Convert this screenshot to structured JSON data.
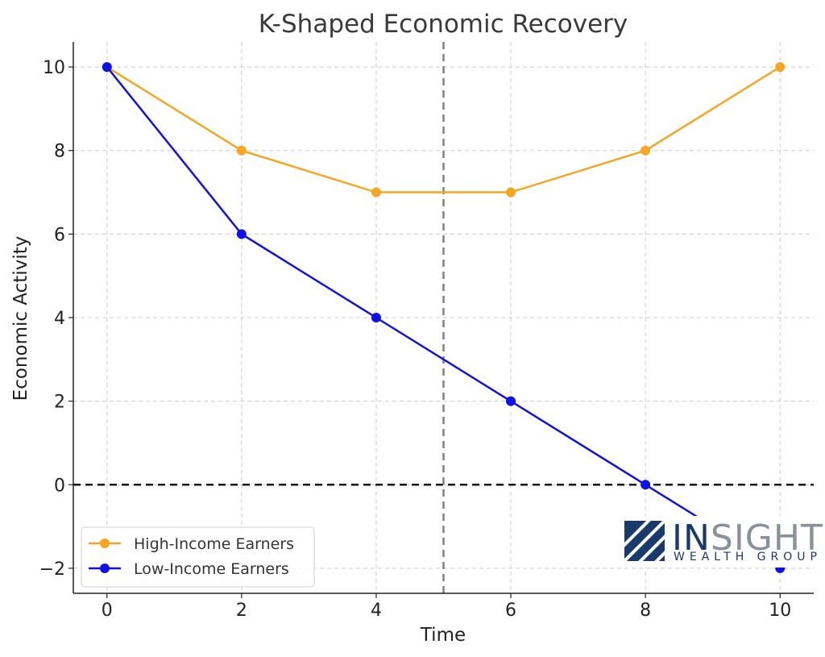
{
  "chart_data": {
    "type": "line",
    "title": "K-Shaped Economic Recovery",
    "xlabel": "Time",
    "ylabel": "Economic Activity",
    "x": [
      0,
      2,
      4,
      6,
      8,
      10
    ],
    "xlim": [
      -0.5,
      10.5
    ],
    "ylim": [
      -2.6,
      10.6
    ],
    "xticks": [
      0,
      2,
      4,
      6,
      8,
      10
    ],
    "yticks": [
      -2,
      0,
      2,
      4,
      6,
      8,
      10
    ],
    "ytick_labels": [
      "−2",
      "0",
      "2",
      "4",
      "6",
      "8",
      "10"
    ],
    "grid": true,
    "legend_position": "lower-left",
    "series": [
      {
        "name": "High-Income Earners",
        "color": "#F5A623",
        "values": [
          10,
          8,
          7,
          7,
          8,
          10
        ]
      },
      {
        "name": "Low-Income Earners",
        "color": "#1010E8",
        "values": [
          10,
          6,
          4,
          2,
          0,
          -2
        ]
      }
    ],
    "reference_lines": [
      {
        "axis": "y",
        "value": 0,
        "style": "dashed",
        "color": "#111111"
      },
      {
        "axis": "x",
        "value": 5,
        "style": "dashed",
        "color": "#808080"
      }
    ]
  },
  "logo": {
    "name_part1": "IN",
    "name_part2": "SIGHT",
    "tagline": "WEALTH GROUP",
    "color_primary": "#1a3a6b",
    "color_secondary": "#8a9199"
  }
}
